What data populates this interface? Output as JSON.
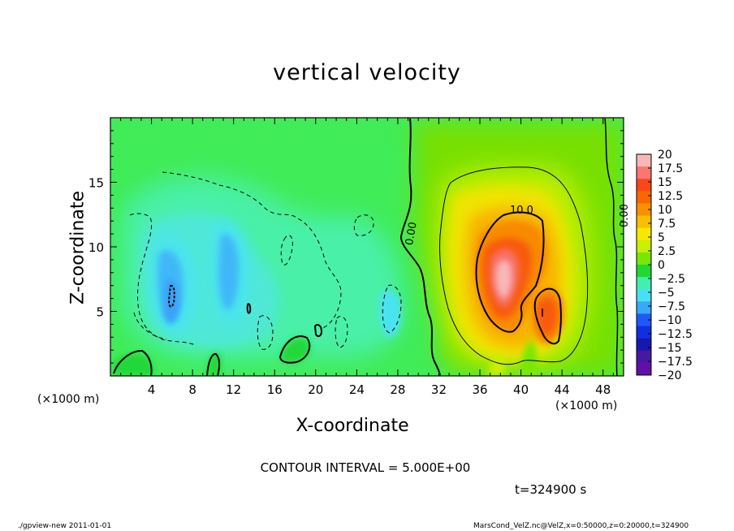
{
  "chart_data": {
    "type": "heatmap",
    "title": "vertical velocity",
    "xlabel": "X-coordinate",
    "ylabel": "Z-coordinate",
    "x_unit": "(×1000 m)",
    "x_ticks": [
      4,
      8,
      12,
      16,
      20,
      24,
      28,
      32,
      36,
      40,
      44,
      48
    ],
    "xlim": [
      0,
      50
    ],
    "y_ticks": [
      5,
      10,
      15
    ],
    "ylim": [
      0,
      20
    ],
    "colorbar": {
      "levels": [
        20,
        17.5,
        15,
        12.5,
        10,
        7.5,
        5,
        2.5,
        0,
        -2.5,
        -5,
        -7.5,
        -10,
        -12.5,
        -15,
        -17.5,
        -20
      ],
      "labels": [
        "20",
        "17.5",
        "15",
        "12.5",
        "10",
        "7.5",
        "5",
        "2.5",
        "0",
        "−2.5",
        "−5",
        "−7.5",
        "−10",
        "−12.5",
        "−15",
        "−17.5",
        "−20"
      ],
      "colors": [
        "#f8b8b8",
        "#f87870",
        "#f84818",
        "#f86800",
        "#f89000",
        "#f8c000",
        "#f8e800",
        "#c8f000",
        "#78e800",
        "#20d830",
        "#40f0b0",
        "#48e0f0",
        "#38a8f8",
        "#2058f8",
        "#1030e0",
        "#1818b0",
        "#4818a0",
        "#6010a8"
      ]
    },
    "contour_labels": [
      "0.00",
      "10.0",
      "0.00"
    ],
    "contour_interval_text": "CONTOUR INTERVAL = 5.000E+00",
    "time_text": "t=324900 s",
    "features": [
      {
        "kind": "updraft",
        "x": 39,
        "z": 8,
        "value": 19
      },
      {
        "kind": "updraft",
        "x": 42.5,
        "z": 5,
        "value": 12
      },
      {
        "kind": "downdraft",
        "x": 5.5,
        "z": 6,
        "value": -10
      },
      {
        "kind": "downdraft",
        "x": 11.5,
        "z": 9,
        "value": -8
      }
    ]
  },
  "footer": {
    "left": "./gpview-new  2011-01-01",
    "right": "MarsCond_VelZ.nc@VelZ,x=0:50000,z=0:20000,t=324900"
  }
}
